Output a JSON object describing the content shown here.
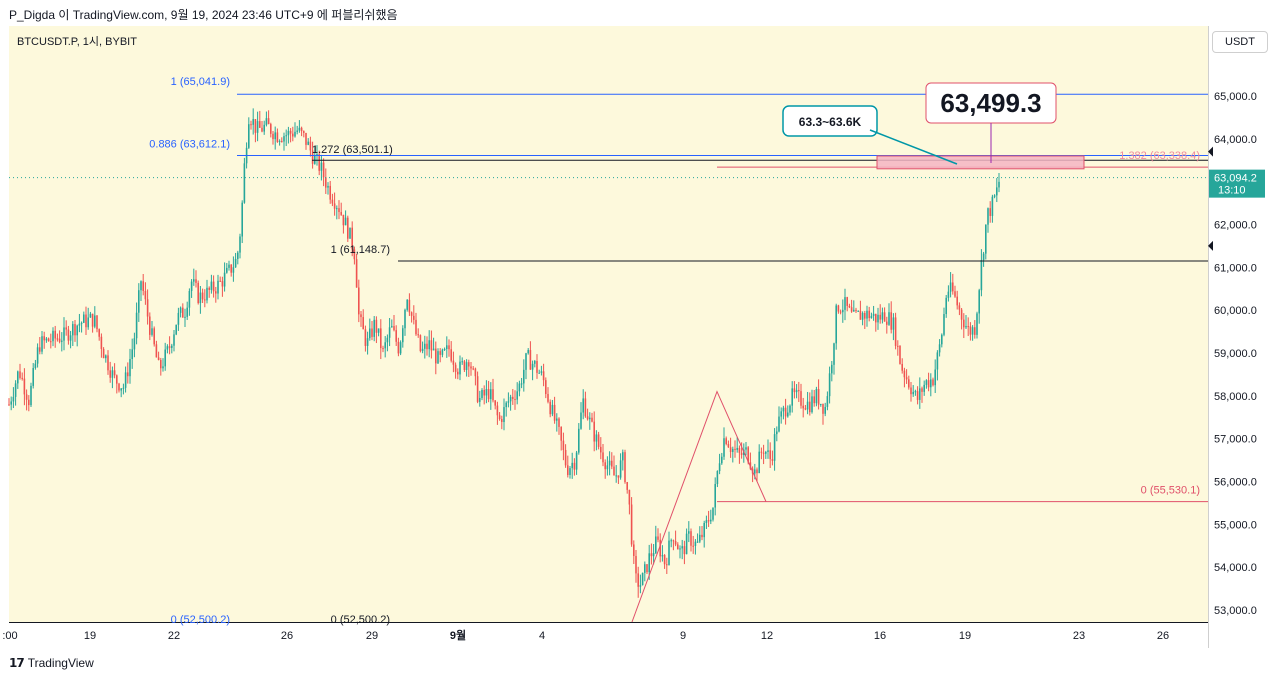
{
  "header_text": "P_Digda 이 TradingView.com, 9월 19, 2024 23:46 UTC+9 에 퍼블리쉬했음",
  "symbol_text": "BTCUSDT.P, 1시, BYBIT",
  "currency": "USDT",
  "footer_brand": "TradingView",
  "chart_data": {
    "type": "candlestick",
    "symbol": "BTCUSDT.P",
    "interval": "1시",
    "exchange": "BYBIT",
    "ylim": [
      52500,
      66000
    ],
    "y_ticks": [
      "53,000.0",
      "54,000.0",
      "55,000.0",
      "56,000.0",
      "57,000.0",
      "58,000.0",
      "59,000.0",
      "60,000.0",
      "61,000.0",
      "62,000.0",
      "63,000.0",
      "64,000.0",
      "65,000.0"
    ],
    "y_tick_values": [
      53000,
      54000,
      55000,
      56000,
      57000,
      58000,
      59000,
      60000,
      61000,
      62000,
      63000,
      64000,
      65000
    ],
    "x_ticks": [
      ":00",
      "19",
      "22",
      "26",
      "29",
      "9월",
      "4",
      "9",
      "12",
      "16",
      "19",
      "23",
      "26"
    ],
    "close_series": [
      [
        0,
        57800
      ],
      [
        10,
        58600
      ],
      [
        20,
        57900
      ],
      [
        30,
        59200
      ],
      [
        40,
        59300
      ],
      [
        55,
        59400
      ],
      [
        70,
        59700
      ],
      [
        85,
        59800
      ],
      [
        95,
        59000
      ],
      [
        105,
        58400
      ],
      [
        115,
        58200
      ],
      [
        125,
        59300
      ],
      [
        132,
        60700
      ],
      [
        140,
        59700
      ],
      [
        150,
        58600
      ],
      [
        160,
        59100
      ],
      [
        168,
        59800
      ],
      [
        176,
        60000
      ],
      [
        182,
        60700
      ],
      [
        190,
        60300
      ],
      [
        198,
        60400
      ],
      [
        210,
        60600
      ],
      [
        220,
        60900
      ],
      [
        228,
        61200
      ],
      [
        232,
        62000
      ],
      [
        236,
        63600
      ],
      [
        240,
        64600
      ],
      [
        248,
        64200
      ],
      [
        258,
        64300
      ],
      [
        268,
        64100
      ],
      [
        278,
        64100
      ],
      [
        288,
        64200
      ],
      [
        296,
        64000
      ],
      [
        304,
        63600
      ],
      [
        312,
        63300
      ],
      [
        320,
        62800
      ],
      [
        330,
        62400
      ],
      [
        340,
        61800
      ],
      [
        346,
        61300
      ],
      [
        350,
        59800
      ],
      [
        358,
        59200
      ],
      [
        366,
        59700
      ],
      [
        374,
        59000
      ],
      [
        382,
        59600
      ],
      [
        390,
        59100
      ],
      [
        398,
        60400
      ],
      [
        404,
        59700
      ],
      [
        412,
        59000
      ],
      [
        420,
        59200
      ],
      [
        430,
        58800
      ],
      [
        440,
        59100
      ],
      [
        450,
        58600
      ],
      [
        460,
        58900
      ],
      [
        470,
        57900
      ],
      [
        480,
        58100
      ],
      [
        490,
        57400
      ],
      [
        500,
        57900
      ],
      [
        510,
        58200
      ],
      [
        518,
        58900
      ],
      [
        526,
        58700
      ],
      [
        534,
        58400
      ],
      [
        542,
        57700
      ],
      [
        550,
        57100
      ],
      [
        558,
        56300
      ],
      [
        566,
        56500
      ],
      [
        574,
        57900
      ],
      [
        582,
        57300
      ],
      [
        590,
        56800
      ],
      [
        598,
        56400
      ],
      [
        606,
        56100
      ],
      [
        614,
        56500
      ],
      [
        620,
        55500
      ],
      [
        626,
        53700
      ],
      [
        632,
        53600
      ],
      [
        640,
        54200
      ],
      [
        648,
        54600
      ],
      [
        656,
        54100
      ],
      [
        664,
        54800
      ],
      [
        672,
        54300
      ],
      [
        680,
        54700
      ],
      [
        688,
        54500
      ],
      [
        696,
        54900
      ],
      [
        704,
        55400
      ],
      [
        710,
        56500
      ],
      [
        716,
        57100
      ],
      [
        722,
        56800
      ],
      [
        730,
        56600
      ],
      [
        738,
        56700
      ],
      [
        746,
        56200
      ],
      [
        754,
        56800
      ],
      [
        762,
        56500
      ],
      [
        768,
        57300
      ],
      [
        776,
        57700
      ],
      [
        784,
        58000
      ],
      [
        792,
        57900
      ],
      [
        800,
        57800
      ],
      [
        808,
        58000
      ],
      [
        816,
        57700
      ],
      [
        822,
        58700
      ],
      [
        828,
        60100
      ],
      [
        836,
        60100
      ],
      [
        844,
        59800
      ],
      [
        852,
        59900
      ],
      [
        860,
        59900
      ],
      [
        868,
        59800
      ],
      [
        876,
        59900
      ],
      [
        884,
        59700
      ],
      [
        892,
        58700
      ],
      [
        900,
        58300
      ],
      [
        908,
        57900
      ],
      [
        916,
        58300
      ],
      [
        924,
        58400
      ],
      [
        932,
        59300
      ],
      [
        938,
        60500
      ],
      [
        944,
        60400
      ],
      [
        952,
        59900
      ],
      [
        960,
        59500
      ],
      [
        966,
        59600
      ],
      [
        972,
        61000
      ],
      [
        978,
        62200
      ],
      [
        984,
        62500
      ],
      [
        988,
        62800
      ],
      [
        991,
        63100
      ]
    ],
    "last_price": "63,094.2",
    "countdown": "13:10",
    "fib_blue": [
      {
        "label": "1 (65,041.9)",
        "value": 65041.9
      },
      {
        "label": "0.886 (63,612.1)",
        "value": 63612.1
      },
      {
        "label": "0 (52,500.2)",
        "value": 52500.2
      }
    ],
    "fib_black": [
      {
        "label": "1.272 (63,501.1)",
        "value": 63501.1
      },
      {
        "label": "1 (61,148.7)",
        "value": 61148.7
      },
      {
        "label": "0 (52,500.2)",
        "value": 52500.2
      }
    ],
    "fib_red": [
      {
        "label": "1.382 (63,338.4)",
        "value": 63338.4
      },
      {
        "label": "0 (55,530.1)",
        "value": 55530.1
      }
    ],
    "zone": [
      63300,
      63600
    ],
    "callout_small": "63.3~63.6K",
    "callout_big": "63,499.3"
  }
}
